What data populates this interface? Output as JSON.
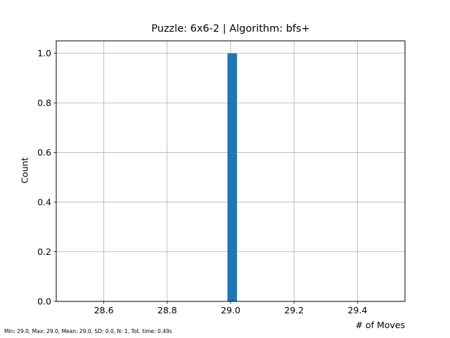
{
  "chart_data": {
    "type": "bar",
    "title": "Puzzle: 6x6-2 | Algorithm: bfs+",
    "xlabel": "# of Moves",
    "ylabel": "Count",
    "xlim": [
      28.45,
      29.55
    ],
    "ylim": [
      0,
      1.05
    ],
    "xticks": [
      "28.6",
      "28.8",
      "29.0",
      "29.2",
      "29.4"
    ],
    "xtick_values": [
      28.6,
      28.8,
      29.0,
      29.2,
      29.4
    ],
    "yticks": [
      "0.0",
      "0.2",
      "0.4",
      "0.6",
      "0.8",
      "1.0"
    ],
    "ytick_values": [
      0.0,
      0.2,
      0.4,
      0.6,
      0.8,
      1.0
    ],
    "bars": [
      {
        "x_start": 28.99,
        "x_end": 29.02,
        "value": 1
      }
    ],
    "grid": true,
    "bar_color": "#1f77b4",
    "footer": "Min: 29.0, Max: 29.0, Mean: 29.0, SD: 0.0, N: 1, Tot. time: 0.49s"
  }
}
